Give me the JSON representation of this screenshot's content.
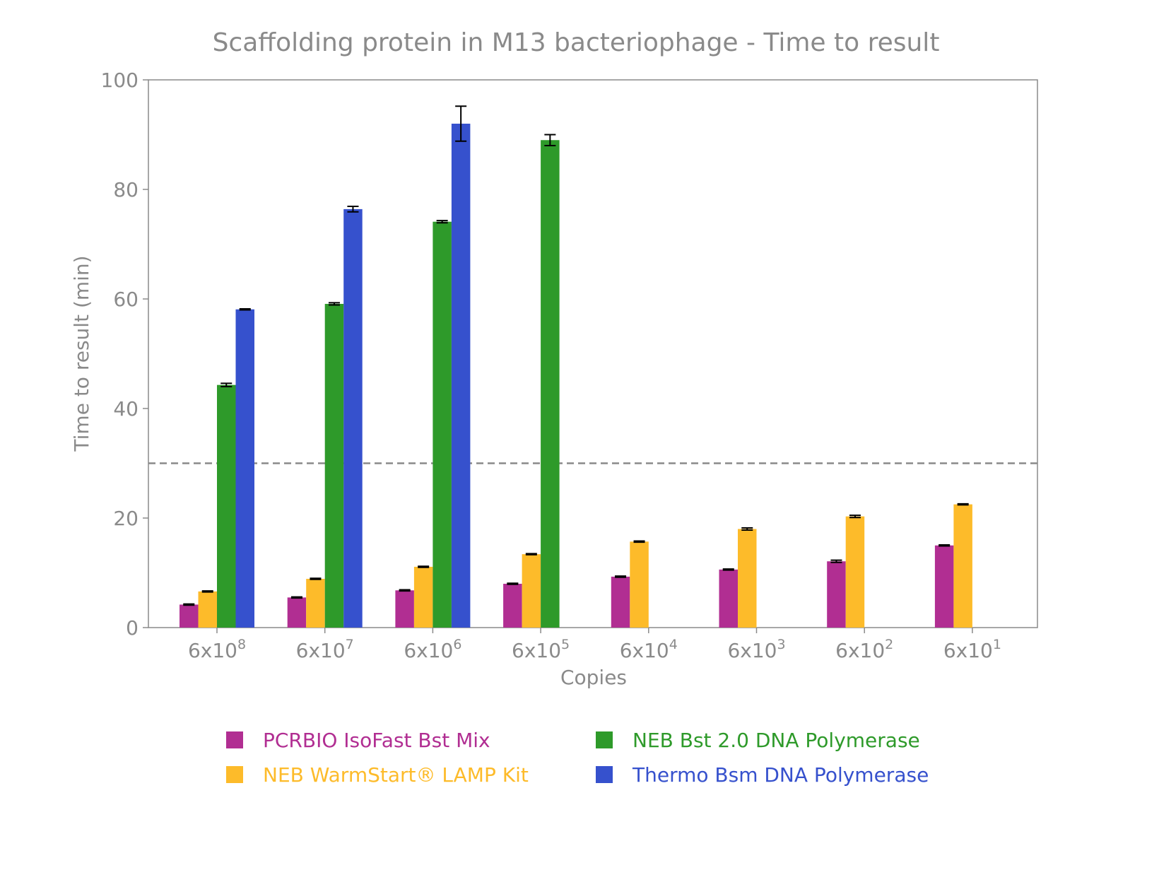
{
  "chart_data": {
    "type": "bar",
    "title": "Scaffolding protein in M13 bacteriophage - Time to result",
    "xlabel": "Copies",
    "ylabel": "Time to result (min)",
    "ylim": [
      0,
      100
    ],
    "yticks": [
      "0",
      "20",
      "40",
      "60",
      "80",
      "100"
    ],
    "categories": [
      {
        "base": "6x10",
        "exp": "8"
      },
      {
        "base": "6x10",
        "exp": "7"
      },
      {
        "base": "6x10",
        "exp": "6"
      },
      {
        "base": "6x10",
        "exp": "5"
      },
      {
        "base": "6x10",
        "exp": "4"
      },
      {
        "base": "6x10",
        "exp": "3"
      },
      {
        "base": "6x10",
        "exp": "2"
      },
      {
        "base": "6x10",
        "exp": "1"
      }
    ],
    "threshold": 30,
    "grid": false,
    "legend_placement": "bottom",
    "series": [
      {
        "name": "PCRBIO IsoFast Bst Mix",
        "color": "#b12e92",
        "values": [
          4.2,
          5.5,
          6.8,
          8.0,
          9.3,
          10.6,
          12.1,
          15.0
        ],
        "errors": [
          0.1,
          0.1,
          0.1,
          0.1,
          0.1,
          0.1,
          0.2,
          0.1
        ]
      },
      {
        "name": "NEB WarmStart® LAMP Kit",
        "color": "#fdbb2a",
        "values": [
          6.6,
          8.9,
          11.1,
          13.4,
          15.7,
          18.0,
          20.3,
          22.5
        ],
        "errors": [
          0.1,
          0.1,
          0.1,
          0.1,
          0.1,
          0.2,
          0.2,
          0.1
        ]
      },
      {
        "name": "NEB Bst 2.0 DNA Polymerase",
        "color": "#2e9a2a",
        "values": [
          44.3,
          59.1,
          74.1,
          89.0,
          null,
          null,
          null,
          null
        ],
        "errors": [
          0.3,
          0.2,
          0.2,
          1.0,
          null,
          null,
          null,
          null
        ]
      },
      {
        "name": "Thermo Bsm DNA Polymerase",
        "color": "#3651cd",
        "values": [
          58.1,
          76.4,
          92.0,
          null,
          null,
          null,
          null,
          null
        ],
        "errors": [
          0.1,
          0.5,
          3.2,
          null,
          null,
          null,
          null,
          null
        ]
      }
    ]
  }
}
